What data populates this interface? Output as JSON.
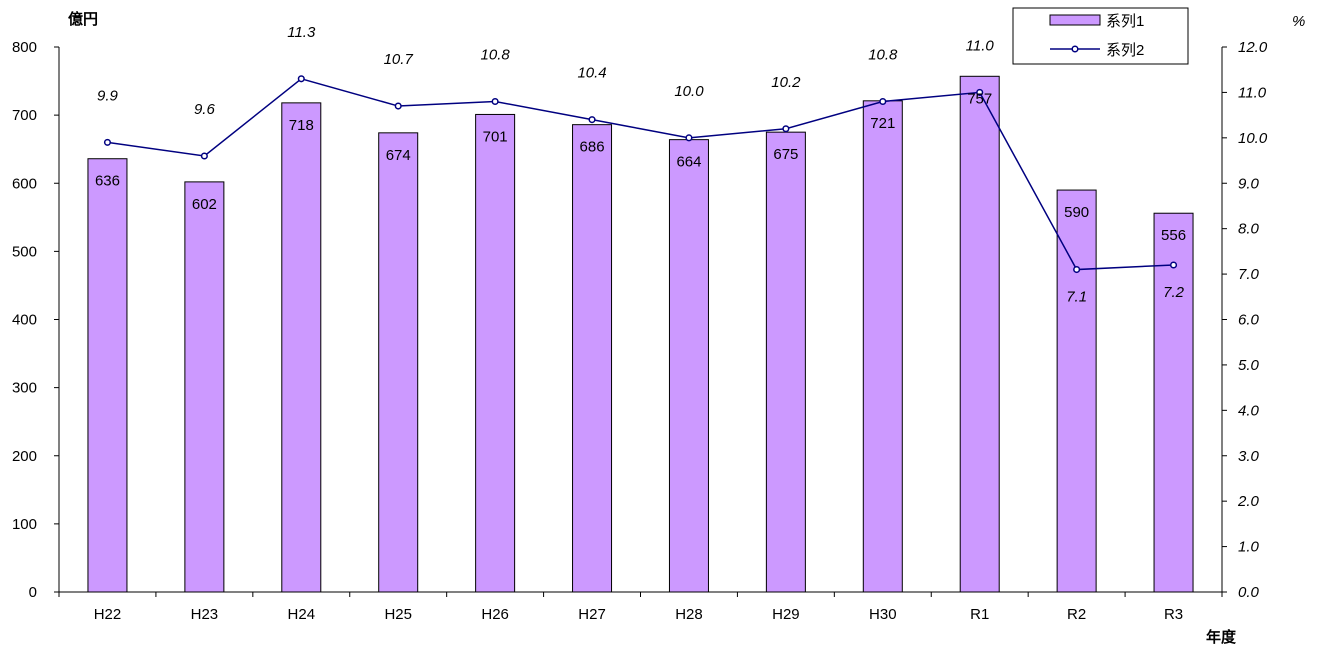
{
  "chart_data": {
    "type": "bar",
    "categories": [
      "H22",
      "H23",
      "H24",
      "H25",
      "H26",
      "H27",
      "H28",
      "H29",
      "H30",
      "R1",
      "R2",
      "R3"
    ],
    "series": [
      {
        "name": "系列1",
        "type": "bar",
        "axis": "left",
        "values": [
          636,
          602,
          718,
          674,
          701,
          686,
          664,
          675,
          721,
          757,
          590,
          556
        ],
        "labels": [
          "636",
          "602",
          "718",
          "674",
          "701",
          "686",
          "664",
          "675",
          "721",
          "757",
          "590",
          "556"
        ]
      },
      {
        "name": "系列2",
        "type": "line",
        "axis": "right",
        "values": [
          9.9,
          9.6,
          11.3,
          10.7,
          10.8,
          10.4,
          10.0,
          10.2,
          10.8,
          11.0,
          7.1,
          7.2
        ],
        "labels": [
          "9.9",
          "9.6",
          "11.3",
          "10.7",
          "10.8",
          "10.4",
          "10.0",
          "10.2",
          "10.8",
          "11.0",
          "7.1",
          "7.2"
        ]
      }
    ],
    "y_left": {
      "label": "億円",
      "range": [
        0,
        800
      ],
      "ticks": [
        "0",
        "100",
        "200",
        "300",
        "400",
        "500",
        "600",
        "700",
        "800"
      ]
    },
    "y_right": {
      "label": "%",
      "range": [
        0,
        12
      ],
      "ticks": [
        "0.0",
        "1.0",
        "2.0",
        "3.0",
        "4.0",
        "5.0",
        "6.0",
        "7.0",
        "8.0",
        "9.0",
        "10.0",
        "11.0",
        "12.0"
      ]
    },
    "xlabel": "年度",
    "legend_position": "top-right",
    "grid": false,
    "colors": {
      "bar_fill": "#cc99ff",
      "bar_stroke": "#000000",
      "line": "#000080",
      "marker_fill": "#ffffff"
    }
  }
}
